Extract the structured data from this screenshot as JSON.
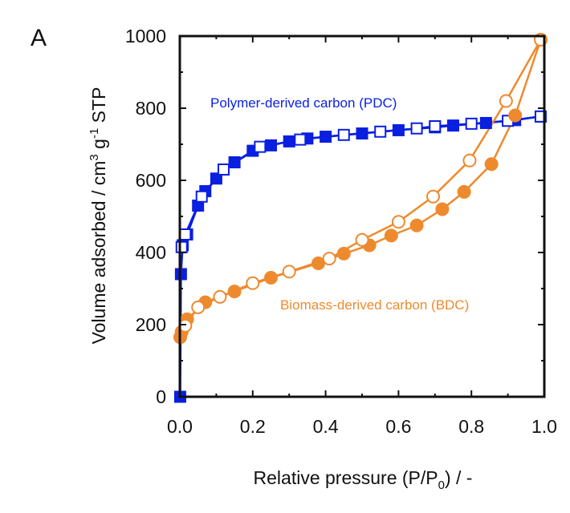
{
  "panel_label": "A",
  "colors": {
    "pdc": "#0a1fe0",
    "bdc": "#ee8a2e",
    "axis": "#111111"
  },
  "chart_data": {
    "type": "scatter",
    "xlabel": {
      "main": "Relative pressure (P/P",
      "sub": "0",
      "tail": ") / -"
    },
    "ylabel": {
      "main": "Volume adsorbed / cm",
      "sup1": "3",
      "mid": " g",
      "sup2": "-1",
      "tail": " STP"
    },
    "xlim": [
      0,
      1.0
    ],
    "ylim": [
      0,
      1000
    ],
    "xticks": [
      "0.0",
      "0.2",
      "0.4",
      "0.6",
      "0.8",
      "1.0"
    ],
    "yticks": [
      "0",
      "200",
      "400",
      "600",
      "800",
      "1000"
    ],
    "series": [
      {
        "name": "Polymer-derived carbon (PDC)",
        "color": "#0a1fe0",
        "marker": "square",
        "fill": "filled",
        "branch": "adsorption",
        "x": [
          0.001,
          0.003,
          0.008,
          0.02,
          0.05,
          0.07,
          0.1,
          0.15,
          0.2,
          0.25,
          0.3,
          0.35,
          0.4,
          0.5,
          0.6,
          0.7,
          0.75,
          0.84,
          0.92,
          0.99
        ],
        "y": [
          0,
          340,
          420,
          450,
          530,
          570,
          605,
          650,
          682,
          697,
          708,
          716,
          721,
          730,
          739,
          747,
          752,
          759,
          767,
          777
        ]
      },
      {
        "name": "Polymer-derived carbon (PDC)",
        "color": "#0a1fe0",
        "marker": "square",
        "fill": "open",
        "branch": "desorption",
        "x": [
          0.99,
          0.9,
          0.8,
          0.7,
          0.65,
          0.55,
          0.45,
          0.33,
          0.22,
          0.12,
          0.06,
          0.015,
          0.005
        ],
        "y": [
          777,
          765,
          757,
          750,
          744,
          735,
          726,
          713,
          693,
          630,
          555,
          450,
          415
        ]
      },
      {
        "name": "Biomass-derived carbon (BDC)",
        "color": "#ee8a2e",
        "marker": "circle",
        "fill": "filled",
        "branch": "adsorption",
        "x": [
          0.001,
          0.005,
          0.02,
          0.07,
          0.15,
          0.25,
          0.38,
          0.45,
          0.52,
          0.58,
          0.65,
          0.72,
          0.78,
          0.855,
          0.92,
          0.99
        ],
        "y": [
          165,
          180,
          215,
          262,
          292,
          330,
          370,
          397,
          420,
          447,
          475,
          520,
          568,
          645,
          780,
          990
        ]
      },
      {
        "name": "Biomass-derived carbon (BDC)",
        "color": "#ee8a2e",
        "marker": "circle",
        "fill": "open",
        "branch": "desorption",
        "x": [
          0.99,
          0.895,
          0.795,
          0.695,
          0.6,
          0.5,
          0.41,
          0.3,
          0.2,
          0.11,
          0.05,
          0.015
        ],
        "y": [
          990,
          820,
          655,
          555,
          485,
          435,
          383,
          347,
          315,
          277,
          248,
          197
        ]
      }
    ],
    "annotations": [
      {
        "text": "Polymer-derived carbon (PDC)",
        "color": "#0a1fe0"
      },
      {
        "text": "Biomass-derived carbon (BDC)",
        "color": "#ee8a2e"
      }
    ],
    "grid": false,
    "legend": "none"
  }
}
